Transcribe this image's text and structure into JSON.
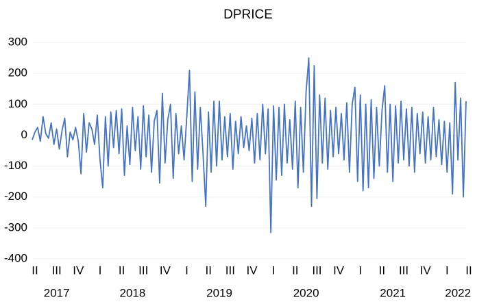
{
  "chart_data": {
    "type": "line",
    "title": "DPRICE",
    "color": "#4472c4",
    "grid": true,
    "ylim": [
      -400,
      300
    ],
    "yticks": [
      -400,
      -300,
      -200,
      -100,
      0,
      100,
      200,
      300
    ],
    "quarter_groups": [
      {
        "year": "2017",
        "quarters": [
          "II",
          "III",
          "IV"
        ]
      },
      {
        "year": "2018",
        "quarters": [
          "I",
          "II",
          "III",
          "IV"
        ]
      },
      {
        "year": "2019",
        "quarters": [
          "I",
          "II",
          "III",
          "IV"
        ]
      },
      {
        "year": "2020",
        "quarters": [
          "I",
          "II",
          "III",
          "IV"
        ]
      },
      {
        "year": "2021",
        "quarters": [
          "I",
          "II",
          "III",
          "IV"
        ]
      },
      {
        "year": "2022",
        "quarters": [
          "I",
          "II"
        ]
      }
    ],
    "values": [
      -15,
      10,
      25,
      -20,
      60,
      5,
      -10,
      40,
      -30,
      20,
      -45,
      15,
      55,
      -70,
      10,
      -15,
      25,
      -20,
      -125,
      70,
      -55,
      40,
      20,
      -30,
      65,
      -80,
      -170,
      60,
      -100,
      75,
      -40,
      80,
      -60,
      85,
      -130,
      30,
      -95,
      90,
      -50,
      60,
      -110,
      95,
      -70,
      65,
      -120,
      45,
      80,
      -155,
      135,
      -90,
      50,
      100,
      -140,
      70,
      -60,
      30,
      -80,
      60,
      210,
      -150,
      140,
      -110,
      90,
      -60,
      -230,
      75,
      -120,
      110,
      -100,
      110,
      -80,
      60,
      -70,
      70,
      -110,
      45,
      -60,
      60,
      -40,
      30,
      -50,
      55,
      -90,
      70,
      -80,
      100,
      -60,
      85,
      -315,
      95,
      -145,
      90,
      -130,
      100,
      -90,
      50,
      -110,
      110,
      -170,
      90,
      -120,
      140,
      250,
      -230,
      225,
      -205,
      130,
      -90,
      120,
      -110,
      80,
      -70,
      90,
      -60,
      70,
      -80,
      105,
      -120,
      100,
      155,
      -150,
      130,
      -180,
      100,
      -170,
      115,
      -140,
      90,
      -100,
      80,
      160,
      -120,
      100,
      -150,
      95,
      -90,
      110,
      -80,
      85,
      -100,
      90,
      -120,
      70,
      -60,
      75,
      -90,
      60,
      -80,
      90,
      -70,
      50,
      -95,
      45,
      -120,
      40,
      -190,
      170,
      -80,
      120,
      -200,
      110
    ]
  }
}
